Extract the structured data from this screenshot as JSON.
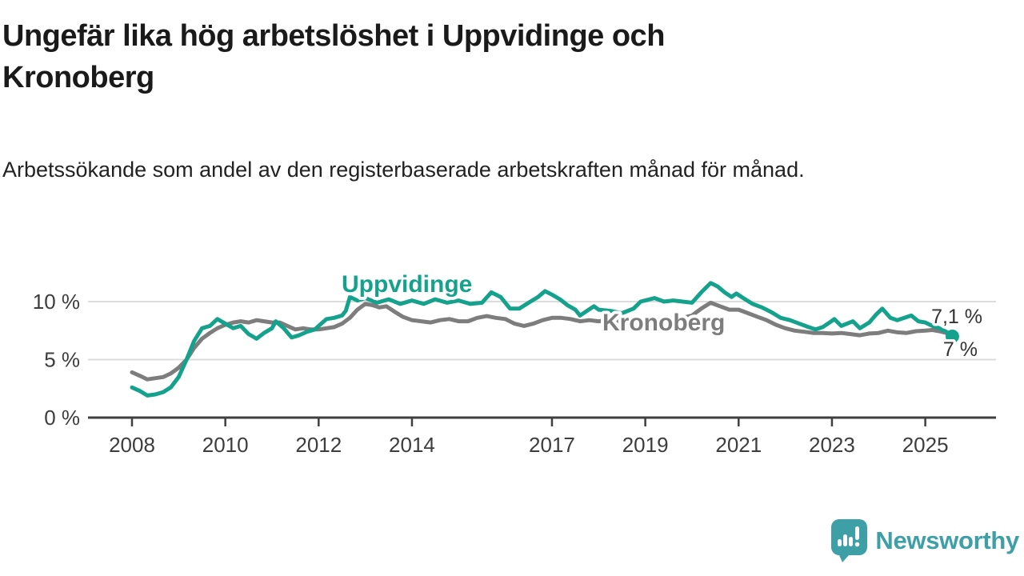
{
  "header": {
    "title": "Ungefär lika hög arbetslöshet i Uppvidinge och Kronoberg",
    "subtitle": "Arbetssökande som andel av den registerbaserade arbetskraften månad för månad."
  },
  "chart_data": {
    "type": "line",
    "unit": "%",
    "x_axis": {
      "range": [
        2008.0,
        2026.3
      ],
      "tick_years": [
        2008,
        2010,
        2012,
        2014,
        2017,
        2019,
        2021,
        2023,
        2025
      ],
      "tick_labels": [
        "2008",
        "2010",
        "2012",
        "2014",
        "2017",
        "2019",
        "2021",
        "2023",
        "2025"
      ]
    },
    "y_axis": {
      "range": [
        0,
        12.5
      ],
      "ticks": [
        0,
        5,
        10
      ],
      "tick_labels": [
        "0 %",
        "5 %",
        "10 %"
      ],
      "gridlines": true
    },
    "legend_position": "inline-labels",
    "series": [
      {
        "name": "Kronoberg",
        "color": "#7d7d7d",
        "end_label": "7,1 %",
        "end_value": 7.1,
        "end_dot": false,
        "points": [
          [
            2008.0,
            3.9
          ],
          [
            2008.17,
            3.6
          ],
          [
            2008.33,
            3.3
          ],
          [
            2008.5,
            3.4
          ],
          [
            2008.67,
            3.5
          ],
          [
            2008.83,
            3.8
          ],
          [
            2009.0,
            4.3
          ],
          [
            2009.17,
            5.0
          ],
          [
            2009.33,
            6.0
          ],
          [
            2009.5,
            6.8
          ],
          [
            2009.67,
            7.3
          ],
          [
            2009.83,
            7.7
          ],
          [
            2010.0,
            8.0
          ],
          [
            2010.17,
            8.2
          ],
          [
            2010.33,
            8.3
          ],
          [
            2010.5,
            8.2
          ],
          [
            2010.67,
            8.4
          ],
          [
            2010.83,
            8.3
          ],
          [
            2011.0,
            8.2
          ],
          [
            2011.17,
            8.2
          ],
          [
            2011.33,
            7.9
          ],
          [
            2011.5,
            7.6
          ],
          [
            2011.67,
            7.7
          ],
          [
            2011.83,
            7.6
          ],
          [
            2012.0,
            7.6
          ],
          [
            2012.17,
            7.7
          ],
          [
            2012.33,
            7.8
          ],
          [
            2012.5,
            8.1
          ],
          [
            2012.67,
            8.6
          ],
          [
            2012.83,
            9.3
          ],
          [
            2013.0,
            9.8
          ],
          [
            2013.15,
            9.7
          ],
          [
            2013.3,
            9.5
          ],
          [
            2013.45,
            9.6
          ],
          [
            2013.6,
            9.2
          ],
          [
            2013.8,
            8.7
          ],
          [
            2014.0,
            8.4
          ],
          [
            2014.2,
            8.3
          ],
          [
            2014.4,
            8.2
          ],
          [
            2014.6,
            8.4
          ],
          [
            2014.8,
            8.5
          ],
          [
            2015.0,
            8.3
          ],
          [
            2015.2,
            8.3
          ],
          [
            2015.4,
            8.6
          ],
          [
            2015.6,
            8.75
          ],
          [
            2015.8,
            8.6
          ],
          [
            2016.0,
            8.5
          ],
          [
            2016.2,
            8.1
          ],
          [
            2016.4,
            7.9
          ],
          [
            2016.6,
            8.1
          ],
          [
            2016.8,
            8.4
          ],
          [
            2017.0,
            8.6
          ],
          [
            2017.2,
            8.6
          ],
          [
            2017.4,
            8.5
          ],
          [
            2017.6,
            8.3
          ],
          [
            2017.8,
            8.4
          ],
          [
            2018.0,
            8.3
          ],
          [
            2018.2,
            8.4
          ],
          [
            2018.4,
            8.3
          ],
          [
            2018.6,
            8.4
          ],
          [
            2018.8,
            8.5
          ],
          [
            2019.0,
            8.4
          ],
          [
            2019.2,
            8.5
          ],
          [
            2019.4,
            8.4
          ],
          [
            2019.6,
            8.4
          ],
          [
            2019.8,
            8.6
          ],
          [
            2020.0,
            8.8
          ],
          [
            2020.2,
            9.4
          ],
          [
            2020.4,
            9.9
          ],
          [
            2020.6,
            9.6
          ],
          [
            2020.8,
            9.3
          ],
          [
            2021.0,
            9.3
          ],
          [
            2021.2,
            9.0
          ],
          [
            2021.4,
            8.7
          ],
          [
            2021.6,
            8.4
          ],
          [
            2021.8,
            8.0
          ],
          [
            2022.0,
            7.7
          ],
          [
            2022.2,
            7.5
          ],
          [
            2022.4,
            7.4
          ],
          [
            2022.6,
            7.3
          ],
          [
            2022.8,
            7.3
          ],
          [
            2023.0,
            7.25
          ],
          [
            2023.2,
            7.3
          ],
          [
            2023.4,
            7.2
          ],
          [
            2023.6,
            7.1
          ],
          [
            2023.8,
            7.25
          ],
          [
            2024.0,
            7.3
          ],
          [
            2024.2,
            7.5
          ],
          [
            2024.4,
            7.35
          ],
          [
            2024.6,
            7.3
          ],
          [
            2024.8,
            7.45
          ],
          [
            2025.0,
            7.5
          ],
          [
            2025.15,
            7.55
          ],
          [
            2025.3,
            7.45
          ],
          [
            2025.45,
            7.3
          ],
          [
            2025.58,
            7.1
          ]
        ]
      },
      {
        "name": "Uppvidinge",
        "color": "#15a28d",
        "end_label": "7 %",
        "end_value": 7.0,
        "end_dot": true,
        "points": [
          [
            2008.0,
            2.6
          ],
          [
            2008.17,
            2.3
          ],
          [
            2008.33,
            1.9
          ],
          [
            2008.5,
            2.0
          ],
          [
            2008.67,
            2.2
          ],
          [
            2008.83,
            2.6
          ],
          [
            2009.0,
            3.5
          ],
          [
            2009.17,
            5.0
          ],
          [
            2009.33,
            6.6
          ],
          [
            2009.5,
            7.7
          ],
          [
            2009.67,
            7.9
          ],
          [
            2009.83,
            8.5
          ],
          [
            2010.0,
            8.1
          ],
          [
            2010.17,
            7.7
          ],
          [
            2010.33,
            7.9
          ],
          [
            2010.5,
            7.2
          ],
          [
            2010.67,
            6.8
          ],
          [
            2010.83,
            7.3
          ],
          [
            2011.0,
            7.7
          ],
          [
            2011.08,
            8.3
          ],
          [
            2011.25,
            7.7
          ],
          [
            2011.42,
            6.9
          ],
          [
            2011.58,
            7.1
          ],
          [
            2011.75,
            7.4
          ],
          [
            2011.92,
            7.6
          ],
          [
            2012.0,
            7.9
          ],
          [
            2012.17,
            8.5
          ],
          [
            2012.33,
            8.6
          ],
          [
            2012.5,
            8.8
          ],
          [
            2012.58,
            9.2
          ],
          [
            2012.67,
            10.4
          ],
          [
            2012.83,
            10.1
          ],
          [
            2013.0,
            10.3
          ],
          [
            2013.25,
            9.9
          ],
          [
            2013.5,
            10.2
          ],
          [
            2013.75,
            9.8
          ],
          [
            2014.0,
            10.1
          ],
          [
            2014.25,
            9.8
          ],
          [
            2014.5,
            10.2
          ],
          [
            2014.75,
            9.9
          ],
          [
            2015.0,
            10.1
          ],
          [
            2015.25,
            9.8
          ],
          [
            2015.5,
            9.9
          ],
          [
            2015.7,
            10.8
          ],
          [
            2015.9,
            10.4
          ],
          [
            2016.1,
            9.4
          ],
          [
            2016.3,
            9.4
          ],
          [
            2016.5,
            9.9
          ],
          [
            2016.7,
            10.4
          ],
          [
            2016.85,
            10.9
          ],
          [
            2017.0,
            10.6
          ],
          [
            2017.17,
            10.2
          ],
          [
            2017.33,
            9.7
          ],
          [
            2017.5,
            9.3
          ],
          [
            2017.6,
            8.8
          ],
          [
            2017.75,
            9.2
          ],
          [
            2017.9,
            9.6
          ],
          [
            2018.0,
            9.3
          ],
          [
            2018.25,
            9.2
          ],
          [
            2018.5,
            9.0
          ],
          [
            2018.75,
            9.4
          ],
          [
            2018.9,
            10.0
          ],
          [
            2019.0,
            10.1
          ],
          [
            2019.2,
            10.3
          ],
          [
            2019.4,
            10.0
          ],
          [
            2019.6,
            10.1
          ],
          [
            2019.8,
            10.0
          ],
          [
            2020.0,
            9.9
          ],
          [
            2020.2,
            10.8
          ],
          [
            2020.4,
            11.6
          ],
          [
            2020.55,
            11.3
          ],
          [
            2020.7,
            10.8
          ],
          [
            2020.85,
            10.4
          ],
          [
            2020.95,
            10.7
          ],
          [
            2021.1,
            10.3
          ],
          [
            2021.3,
            9.8
          ],
          [
            2021.5,
            9.5
          ],
          [
            2021.7,
            9.1
          ],
          [
            2021.9,
            8.6
          ],
          [
            2022.1,
            8.4
          ],
          [
            2022.3,
            8.1
          ],
          [
            2022.5,
            7.8
          ],
          [
            2022.65,
            7.6
          ],
          [
            2022.8,
            7.8
          ],
          [
            2022.95,
            8.2
          ],
          [
            2023.05,
            8.5
          ],
          [
            2023.2,
            7.9
          ],
          [
            2023.45,
            8.3
          ],
          [
            2023.6,
            7.7
          ],
          [
            2023.8,
            8.2
          ],
          [
            2023.95,
            8.9
          ],
          [
            2024.08,
            9.4
          ],
          [
            2024.25,
            8.6
          ],
          [
            2024.4,
            8.4
          ],
          [
            2024.55,
            8.6
          ],
          [
            2024.7,
            8.8
          ],
          [
            2024.85,
            8.3
          ],
          [
            2025.0,
            8.2
          ],
          [
            2025.15,
            7.9
          ],
          [
            2025.3,
            7.7
          ],
          [
            2025.45,
            7.4
          ],
          [
            2025.58,
            7.0
          ]
        ]
      }
    ]
  },
  "footer": {
    "brand": "Newsworthy"
  },
  "colors": {
    "accent_teal": "#15a28d",
    "neutral_gray": "#7d7d7d",
    "logo_teal": "#3f9fa6",
    "grid": "#dcdcdc",
    "axis": "#3f3f3f",
    "text": "#1a1a1a"
  }
}
